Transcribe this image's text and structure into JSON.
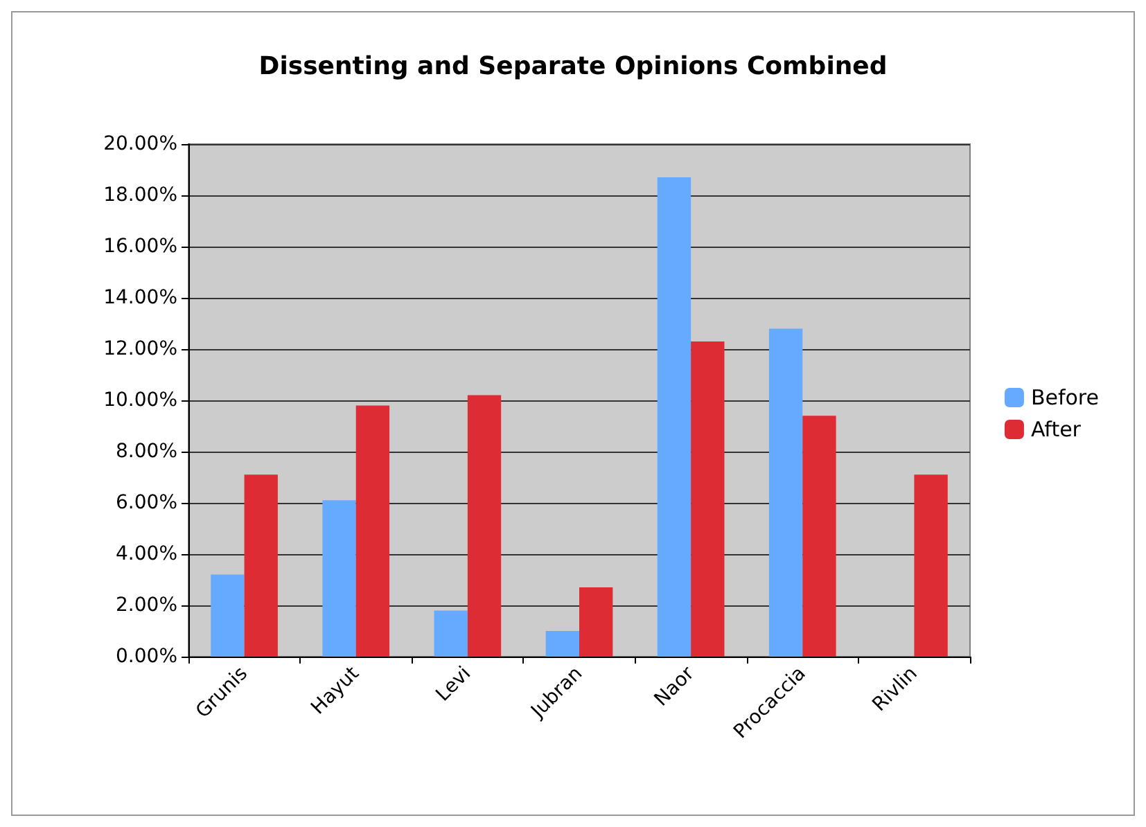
{
  "chart_data": {
    "type": "bar",
    "title": "Dissenting and Separate Opinions Combined",
    "categories": [
      "Grunis",
      "Hayut",
      "Levi",
      "Jubran",
      "Naor",
      "Procaccia",
      "Rivlin"
    ],
    "series": [
      {
        "name": "Before",
        "color": "#66aaff",
        "values": [
          3.2,
          6.1,
          1.8,
          1.0,
          18.7,
          12.8,
          0
        ]
      },
      {
        "name": "After",
        "color": "#dd2c33",
        "values": [
          7.1,
          9.8,
          10.2,
          2.7,
          12.3,
          9.4,
          7.1
        ]
      }
    ],
    "ylim": [
      0,
      20
    ],
    "yticks": [
      {
        "value": 0,
        "label": "0.00%"
      },
      {
        "value": 2,
        "label": "2.00%"
      },
      {
        "value": 4,
        "label": "4.00%"
      },
      {
        "value": 6,
        "label": "6.00%"
      },
      {
        "value": 8,
        "label": "8.00%"
      },
      {
        "value": 10,
        "label": "10.00%"
      },
      {
        "value": 12,
        "label": "12.00%"
      },
      {
        "value": 14,
        "label": "14.00%"
      },
      {
        "value": 16,
        "label": "16.00%"
      },
      {
        "value": 18,
        "label": "18.00%"
      },
      {
        "value": 20,
        "label": "20.00%"
      }
    ],
    "grid": "y",
    "legend": "right"
  }
}
